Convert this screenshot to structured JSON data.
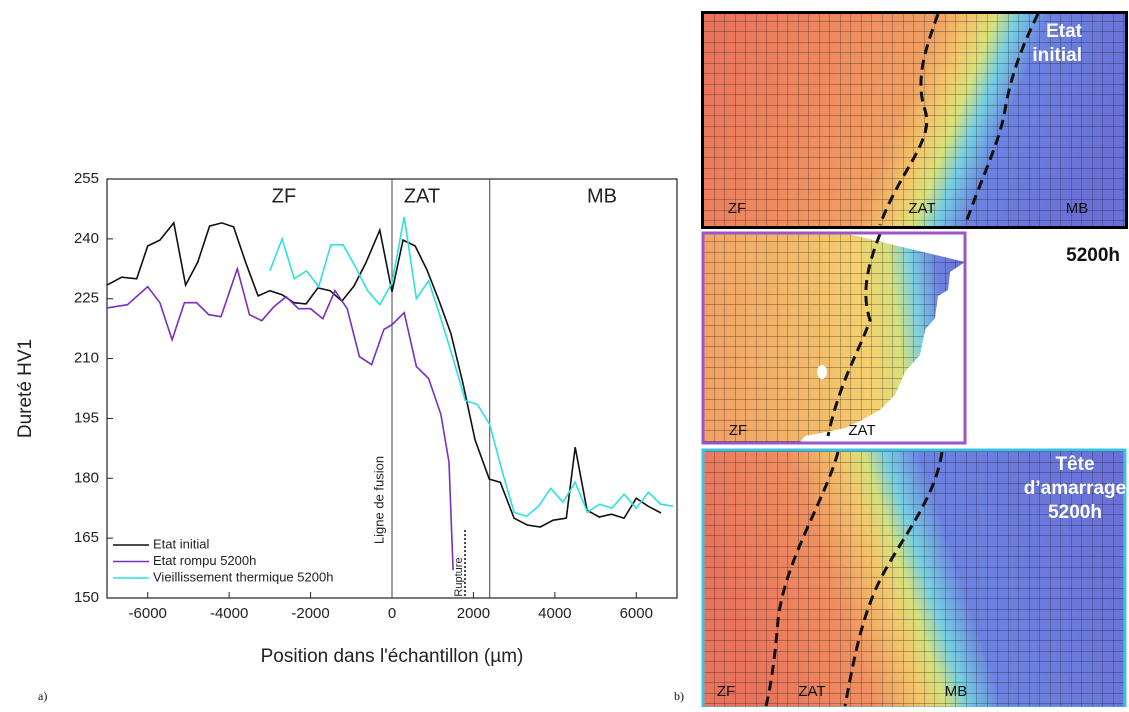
{
  "chart_data": {
    "type": "line",
    "xlabel": "Position dans l'échantillon (µm)",
    "ylabel": "Dureté HV1",
    "xlim": [
      -7000,
      7000
    ],
    "ylim": [
      150,
      255
    ],
    "xticks": [
      -6000,
      -4000,
      -2000,
      0,
      2000,
      4000,
      6000
    ],
    "yticks": [
      150,
      165,
      180,
      195,
      210,
      225,
      240,
      255
    ],
    "vlines": [
      0,
      2400
    ],
    "annotations": [
      "ZF",
      "ZAT",
      "MB",
      "Ligne de fusion",
      "Rupture"
    ],
    "legend": "lower left",
    "series": [
      {
        "name": "Etat initial",
        "color": "#111111",
        "x": [
          -7000,
          -6640,
          -6270,
          -6000,
          -5700,
          -5360,
          -5070,
          -4770,
          -4480,
          -4180,
          -3890,
          -3590,
          -3290,
          -3000,
          -2700,
          -2410,
          -2110,
          -1820,
          -1520,
          -1230,
          -930,
          -640,
          -300,
          0,
          270,
          570,
          860,
          1160,
          1450,
          1750,
          2040,
          2390,
          2660,
          3000,
          3320,
          3640,
          3960,
          4280,
          4500,
          4790,
          5090,
          5390,
          5700,
          6000,
          6290,
          6610
        ],
        "values": [
          228.4,
          230.4,
          230,
          238.2,
          239.7,
          244,
          228.4,
          234.2,
          243.2,
          244,
          243,
          234,
          225.7,
          227,
          226,
          224,
          223.7,
          227.7,
          227,
          224.4,
          228.2,
          234,
          242.2,
          226.7,
          239.7,
          238.2,
          232.2,
          224.4,
          216.2,
          203.4,
          189.6,
          179.8,
          179,
          170,
          168.3,
          167.8,
          169.5,
          170,
          187.8,
          172,
          170.3,
          171,
          170,
          175,
          173,
          171.3
        ]
      },
      {
        "name": "Etat rompu 5200h",
        "color": "#7b2fbe",
        "x": [
          -7000,
          -6500,
          -6000,
          -5700,
          -5400,
          -5100,
          -4800,
          -4500,
          -4200,
          -3800,
          -3500,
          -3200,
          -2900,
          -2600,
          -2300,
          -2000,
          -1700,
          -1400,
          -1100,
          -800,
          -500,
          -200,
          0,
          300,
          600,
          900,
          1200,
          1400,
          1500
        ],
        "values": [
          222.7,
          223.5,
          228,
          224,
          214.7,
          224,
          224,
          221,
          220.5,
          232.5,
          221,
          219.5,
          223,
          225.5,
          222.5,
          222.5,
          220,
          227,
          222.5,
          210.5,
          208.5,
          217.3,
          218.5,
          221.5,
          208,
          205,
          196,
          184,
          157
        ]
      },
      {
        "name": "Vieillissement thermique 5200h",
        "color": "#2ee0e0",
        "x": [
          -3000,
          -2700,
          -2400,
          -2100,
          -1800,
          -1500,
          -1200,
          -900,
          -600,
          -300,
          0,
          300,
          600,
          900,
          1200,
          1500,
          1800,
          2100,
          2400,
          2700,
          3000,
          3300,
          3600,
          3900,
          4200,
          4500,
          4800,
          5100,
          5400,
          5700,
          6000,
          6300,
          6600,
          6900
        ],
        "values": [
          232,
          240,
          230,
          232,
          228,
          238.5,
          238.5,
          233,
          227,
          223.5,
          229,
          245.5,
          225,
          229.5,
          220,
          210,
          199.5,
          198.5,
          193.5,
          182,
          171.5,
          170.5,
          173,
          177.5,
          174,
          179,
          171.5,
          173.5,
          172.5,
          176,
          172.5,
          176.5,
          173.5,
          173
        ]
      }
    ]
  },
  "figure_labels": [
    "a)",
    "b)"
  ],
  "panels": [
    {
      "title_lines": [
        "Etat",
        "initial"
      ],
      "zones": [
        "ZF",
        "ZAT",
        "MB"
      ]
    },
    {
      "title_lines": [
        "5200h"
      ],
      "zones": [
        "ZF",
        "ZAT"
      ]
    },
    {
      "title_lines": [
        "Tête",
        "d’amarrage",
        "5200h"
      ],
      "zones": [
        "ZF",
        "ZAT",
        "MB"
      ]
    }
  ]
}
